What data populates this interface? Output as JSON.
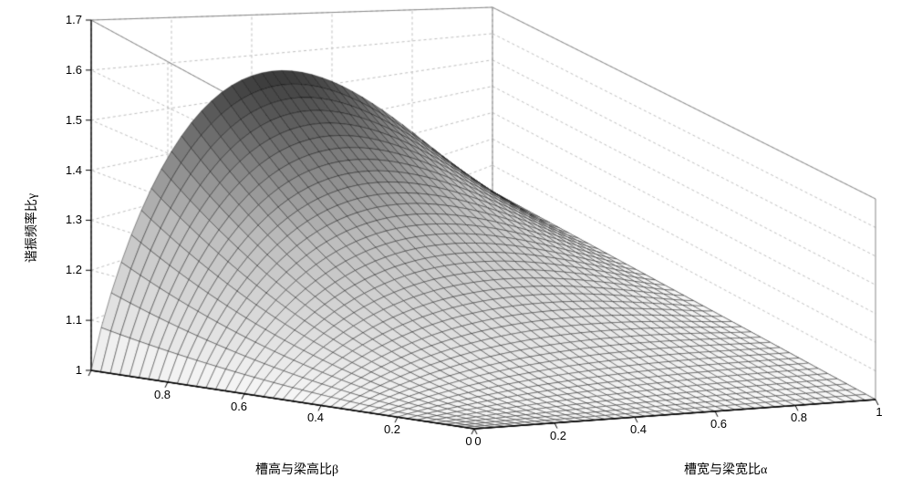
{
  "chart": {
    "type": "surface3d",
    "background_color": "#ffffff",
    "grid_color": "#bfbfbf",
    "box_edge_color": "#888888",
    "surface_mesh_color": "#000000",
    "surface_fill_low": "#f8f8f8",
    "surface_fill_mid": "#bdbdbd",
    "surface_fill_high": "#3a3a3a",
    "axes": {
      "z": {
        "label": "谐振频率比γ",
        "min": 1.0,
        "max": 1.7,
        "ticks": [
          1.0,
          1.1,
          1.2,
          1.3,
          1.4,
          1.5,
          1.6,
          1.7
        ],
        "tick_labels": [
          "1",
          "1.1",
          "1.2",
          "1.3",
          "1.4",
          "1.5",
          "1.6",
          "1.7"
        ]
      },
      "x_left": {
        "label": "槽高与梁高比β",
        "min": 0,
        "max": 1,
        "ticks": [
          0,
          0.2,
          0.4,
          0.6,
          0.8,
          1.0
        ],
        "tick_labels": [
          "0",
          "0.2",
          "0.4",
          "0.6",
          "0.8"
        ]
      },
      "x_right": {
        "label": "槽宽与梁宽比α",
        "min": 0,
        "max": 1,
        "ticks": [
          0,
          0.2,
          0.4,
          0.6,
          0.8,
          1.0
        ],
        "tick_labels": [
          "0",
          "0.2",
          "0.4",
          "0.6",
          "0.8",
          "1"
        ]
      }
    },
    "nx": 40,
    "ny": 40,
    "formula_note": "gamma ≈ 1 + 4*alpha*(1-alpha)*beta^2 (qualitative recreation); drop to 1 as alpha→0, alpha→1, or beta→0; peak near alpha~0.5 beta~1",
    "view": {
      "back_left_z_axis": true,
      "origin_front_center": true,
      "left_axis_is_beta_increasing_outward": true,
      "right_axis_is_alpha_increasing_outward": true
    }
  }
}
